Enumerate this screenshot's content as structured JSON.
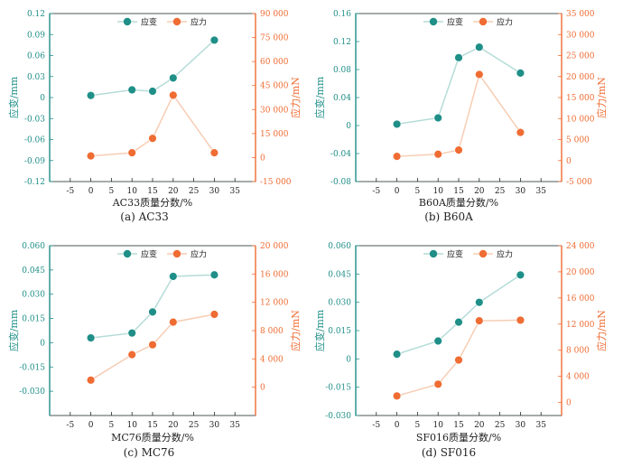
{
  "colors": {
    "strain": "#1f8f88",
    "strain_line": "#b5dcd8",
    "stress": "#ef6c33",
    "stress_line": "#f7cdb4",
    "left_axis": "#1f8f88",
    "right_axis": "#ef6c33",
    "frame": "#1f2d2c"
  },
  "chart_data": [
    {
      "type": "line",
      "title": "",
      "caption": "(a)  AC33",
      "xlabel": "AC33质量分数/%",
      "ylabel_left": "应变/mm",
      "ylabel_right": "应力/mN",
      "xlim": [
        -10,
        40
      ],
      "xticks": [
        -5,
        0,
        5,
        10,
        15,
        20,
        25,
        30,
        35
      ],
      "ylim_left": [
        -0.12,
        0.12
      ],
      "yticks_left": [
        "-0.12",
        "-0.09",
        "-0.06",
        "-0.03",
        "0",
        "0.03",
        "0.06",
        "0.09",
        "0.12"
      ],
      "ylim_right": [
        -15000,
        90000
      ],
      "yticks_right": [
        "-15 000",
        "0",
        "15 000",
        "30 000",
        "45 000",
        "60 000",
        "75 000",
        "90 000"
      ],
      "legend": [
        "应变",
        "应力"
      ],
      "series": [
        {
          "name": "应变",
          "axis": "left",
          "x": [
            0,
            10,
            15,
            20,
            30
          ],
          "values": [
            0.003,
            0.011,
            0.009,
            0.028,
            0.082
          ]
        },
        {
          "name": "应力",
          "axis": "right",
          "x": [
            0,
            10,
            15,
            20,
            30
          ],
          "values": [
            1000,
            3000,
            12000,
            39000,
            3000
          ]
        }
      ]
    },
    {
      "type": "line",
      "title": "",
      "caption": "(b)  B60A",
      "xlabel": "B60A质量分数/%",
      "ylabel_left": "应变/mm",
      "ylabel_right": "应力/mN",
      "xlim": [
        -10,
        40
      ],
      "xticks": [
        -5,
        0,
        5,
        10,
        15,
        20,
        25,
        30,
        35
      ],
      "ylim_left": [
        -0.08,
        0.16
      ],
      "yticks_left": [
        "-0.08",
        "-0.04",
        "0",
        "0.04",
        "0.08",
        "0.12",
        "0.16"
      ],
      "ylim_right": [
        -5000,
        35000
      ],
      "yticks_right": [
        "-5 000",
        "0",
        "5 000",
        "10 000",
        "15 000",
        "20 000",
        "25 000",
        "30 000",
        "35 000"
      ],
      "legend": [
        "应变",
        "应力"
      ],
      "series": [
        {
          "name": "应变",
          "axis": "left",
          "x": [
            0,
            10,
            15,
            20,
            30
          ],
          "values": [
            0.002,
            0.011,
            0.097,
            0.112,
            0.075
          ]
        },
        {
          "name": "应力",
          "axis": "right",
          "x": [
            0,
            10,
            15,
            20,
            30
          ],
          "values": [
            1000,
            1500,
            2500,
            20500,
            6700
          ]
        }
      ]
    },
    {
      "type": "line",
      "title": "",
      "caption": "(c)  MC76",
      "xlabel": "MC76质量分数/%",
      "ylabel_left": "应变/mm",
      "ylabel_right": "应力/mN",
      "xlim": [
        -10,
        40
      ],
      "xticks": [
        -5,
        0,
        5,
        10,
        15,
        20,
        25,
        30,
        35
      ],
      "ylim_left": [
        -0.045,
        0.06
      ],
      "yticks_left": [
        "-0.030",
        "-0.015",
        "0",
        "0.015",
        "0.030",
        "0.045",
        "0.060"
      ],
      "ylim_right": [
        -4000,
        20000
      ],
      "yticks_right": [
        "0",
        "4 000",
        "8 000",
        "12 000",
        "16 000",
        "20 000"
      ],
      "legend": [
        "应变",
        "应力"
      ],
      "series": [
        {
          "name": "应变",
          "axis": "left",
          "x": [
            0,
            10,
            15,
            20,
            30
          ],
          "values": [
            0.003,
            0.006,
            0.019,
            0.041,
            0.042
          ]
        },
        {
          "name": "应力",
          "axis": "right",
          "x": [
            0,
            10,
            15,
            20,
            30
          ],
          "values": [
            1000,
            4600,
            6000,
            9200,
            10300
          ]
        }
      ]
    },
    {
      "type": "line",
      "title": "",
      "caption": "(d)  SF016",
      "xlabel": "SF016质量分数/%",
      "ylabel_left": "应变/mm",
      "ylabel_right": "应力/mN",
      "xlim": [
        -10,
        40
      ],
      "xticks": [
        -5,
        0,
        5,
        10,
        15,
        20,
        25,
        30,
        35
      ],
      "ylim_left": [
        -0.03,
        0.06
      ],
      "yticks_left": [
        "-0.030",
        "-0.015",
        "0",
        "0.015",
        "0.030",
        "0.045",
        "0.060"
      ],
      "ylim_right": [
        -2000,
        24000
      ],
      "yticks_right": [
        "0",
        "4 000",
        "8 000",
        "12 000",
        "16 000",
        "20 000",
        "24 000"
      ],
      "legend": [
        "应变",
        "应力"
      ],
      "series": [
        {
          "name": "应变",
          "axis": "left",
          "x": [
            0,
            10,
            15,
            20,
            30
          ],
          "values": [
            0.0025,
            0.0095,
            0.0195,
            0.03,
            0.0445
          ]
        },
        {
          "name": "应力",
          "axis": "right",
          "x": [
            0,
            10,
            15,
            20,
            30
          ],
          "values": [
            1000,
            2800,
            6500,
            12500,
            12600
          ]
        }
      ]
    }
  ]
}
